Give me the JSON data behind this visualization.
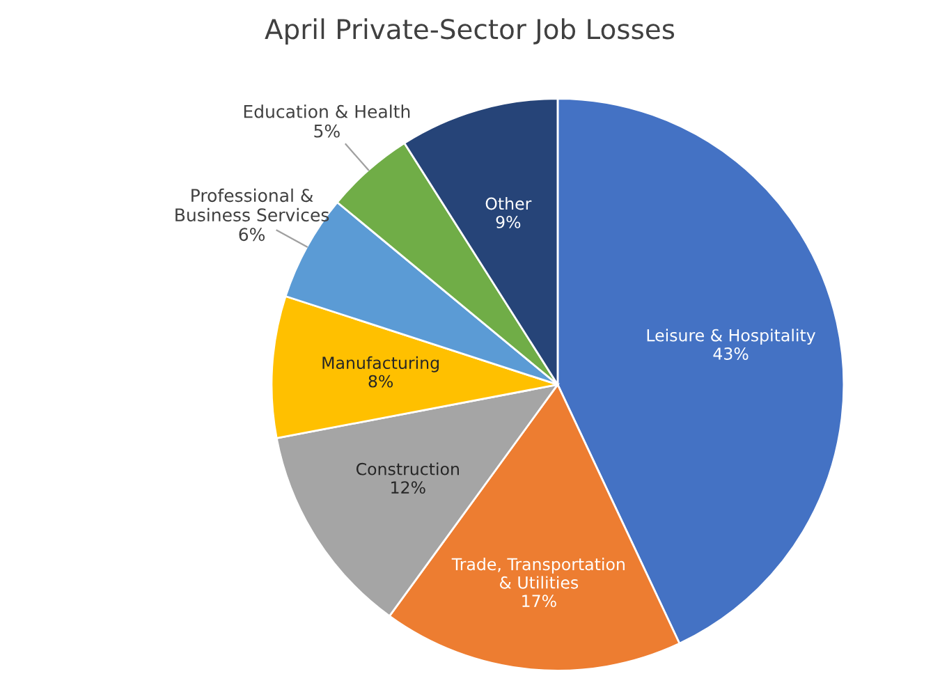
{
  "chart_data": {
    "type": "pie",
    "title": "April Private-Sector Job Losses",
    "categories": [
      "Leisure & Hospitality",
      "Trade, Transportation\n& Utilities",
      "Construction",
      "Manufacturing",
      "Professional &\nBusiness Services",
      "Education & Health",
      "Other"
    ],
    "values": [
      43,
      17,
      12,
      8,
      6,
      5,
      9
    ],
    "value_labels": [
      "43%",
      "17%",
      "12%",
      "8%",
      "6%",
      "5%",
      "9%"
    ],
    "colors": [
      "#4472c4",
      "#ed7d31",
      "#a5a5a5",
      "#ffc000",
      "#5b9bd5",
      "#70ad47",
      "#264478"
    ],
    "legend": false
  }
}
